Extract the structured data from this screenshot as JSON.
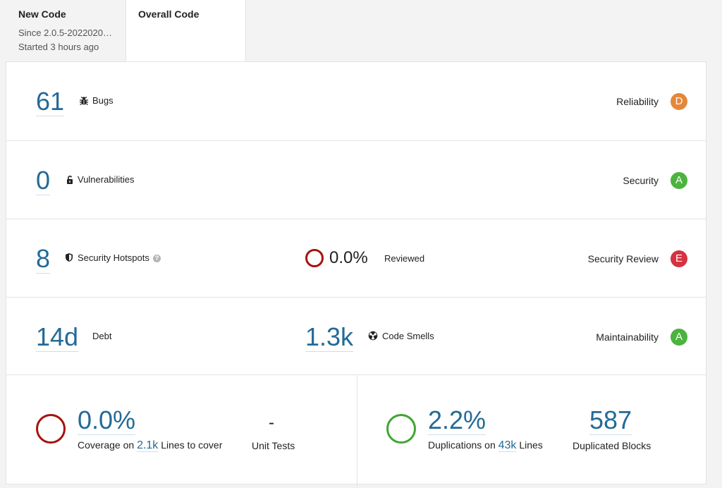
{
  "tabs": {
    "new_code": {
      "title": "New Code",
      "since": "Since 2.0.5-2022020…",
      "started": "Started 3 hours ago"
    },
    "overall_code": {
      "title": "Overall Code"
    }
  },
  "bugs": {
    "value": "61",
    "label": "Bugs",
    "rating_label": "Reliability",
    "grade": "D"
  },
  "vulnerabilities": {
    "value": "0",
    "label": "Vulnerabilities",
    "rating_label": "Security",
    "grade": "A"
  },
  "hotspots": {
    "value": "8",
    "label": "Security Hotspots",
    "help": "?",
    "reviewed_pct": "0.0%",
    "reviewed_label": "Reviewed",
    "rating_label": "Security Review",
    "grade": "E"
  },
  "maintainability": {
    "debt_value": "14d",
    "debt_label": "Debt",
    "smells_value": "1.3k",
    "smells_label": "Code Smells",
    "rating_label": "Maintainability",
    "grade": "A"
  },
  "coverage": {
    "value": "0.0%",
    "prefix": "Coverage on",
    "lines_value": "2.1k",
    "suffix": "Lines to cover",
    "unit_tests_value": "-",
    "unit_tests_label": "Unit Tests"
  },
  "duplications": {
    "value": "2.2%",
    "prefix": "Duplications on",
    "lines_value": "43k",
    "suffix": "Lines",
    "blocks_value": "587",
    "blocks_label": "Duplicated Blocks"
  },
  "colors": {
    "link": "#236a97",
    "grade_d": "#e5873a",
    "grade_a": "#4bb33e",
    "grade_e": "#d4333f",
    "ring_red": "#a3140d",
    "ring_green": "#3fa632"
  }
}
